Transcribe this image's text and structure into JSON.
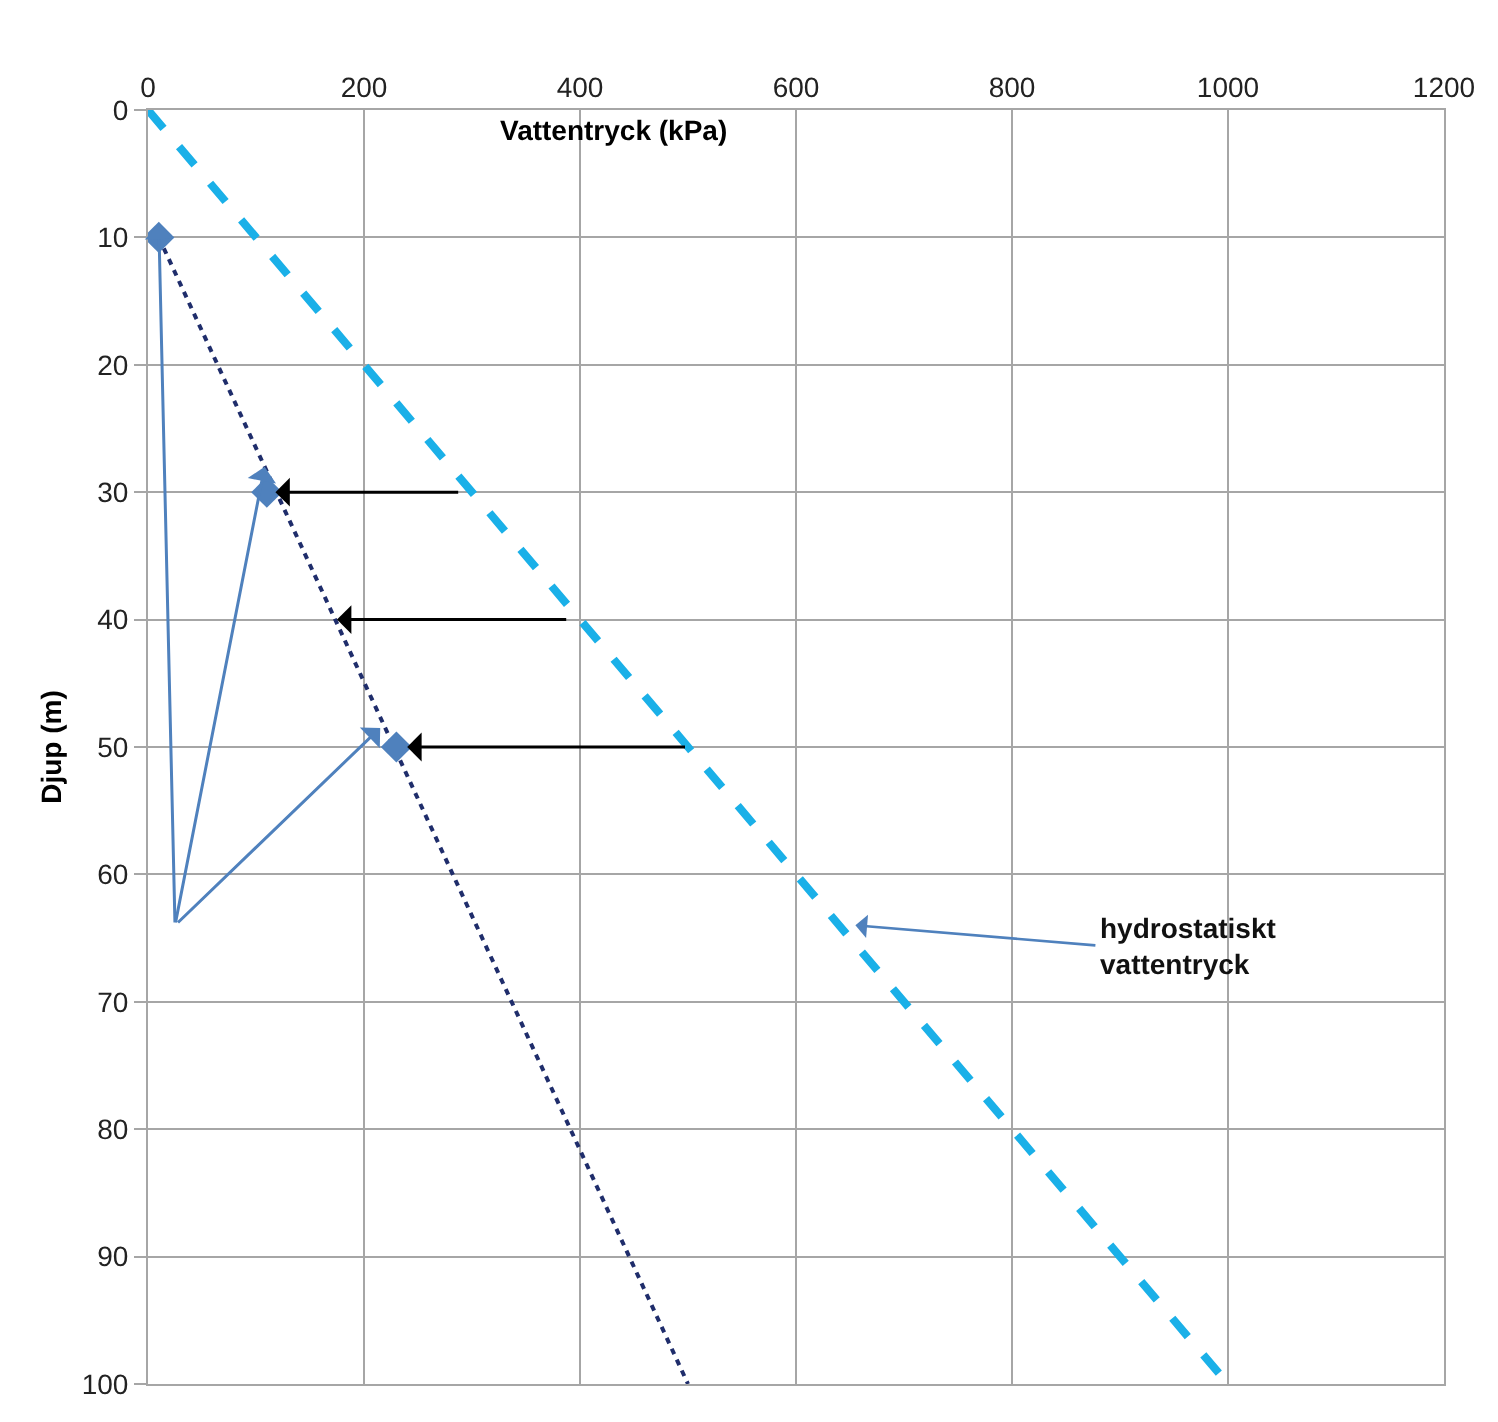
{
  "chart_data": {
    "type": "line",
    "xlabel": "Vattentryck (kPa)",
    "ylabel": "Djup (m)",
    "xlim": [
      0,
      1200
    ],
    "xticks": [
      0,
      200,
      400,
      600,
      800,
      1000,
      1200
    ],
    "ylim": [
      100,
      0
    ],
    "yticks": [
      0,
      10,
      20,
      30,
      40,
      50,
      60,
      70,
      80,
      90,
      100
    ],
    "grid": true,
    "series": [
      {
        "color": "#1ab0e8",
        "line_style": "dashed",
        "x": [
          0,
          1000
        ],
        "values": [
          0,
          100
        ]
      },
      {
        "color": "#1f2d6b",
        "line_style": "dotted",
        "x": [
          10,
          500
        ],
        "values": [
          10,
          100
        ]
      },
      {
        "type": "scatter",
        "color": "#4f81bd",
        "marker": "diamond",
        "x": [
          10,
          110,
          230
        ],
        "values": [
          10,
          30,
          50
        ]
      }
    ],
    "annotations": [
      {
        "text": "hydrostatiskt\nvattentryck",
        "x": 655,
        "y": 64
      }
    ]
  }
}
